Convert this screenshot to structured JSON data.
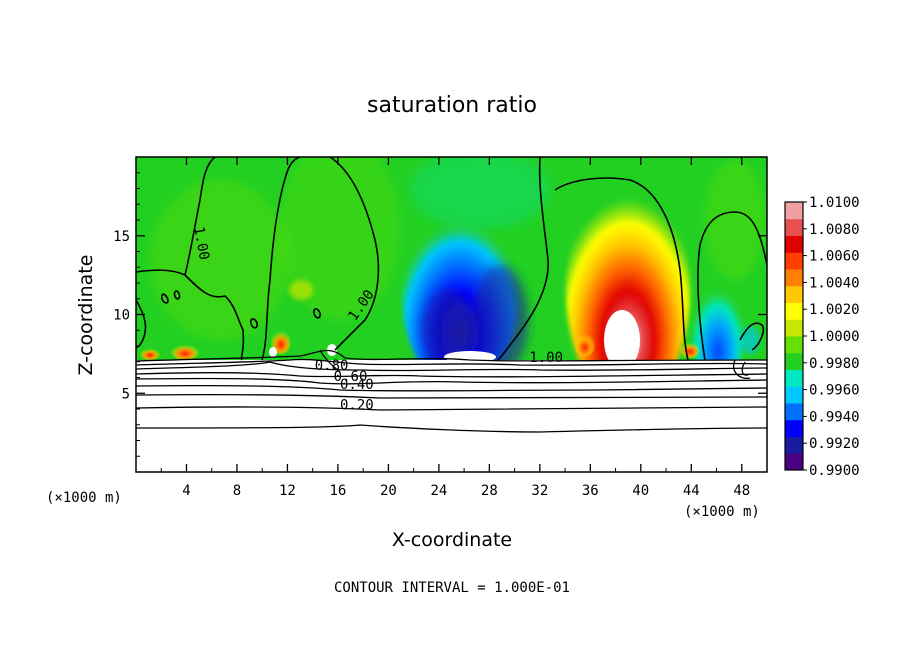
{
  "chart_data": {
    "type": "heatmap",
    "title": "saturation ratio",
    "xlabel": "X-coordinate",
    "ylabel": "Z-coordinate",
    "x_unit": "(×1000 m)",
    "x_unit_right": "(×1000 m)",
    "xlim": [
      0,
      50
    ],
    "ylim": [
      0,
      20
    ],
    "x_ticks": [
      4,
      8,
      12,
      16,
      20,
      24,
      28,
      32,
      36,
      40,
      44,
      48
    ],
    "y_ticks": [
      5,
      10,
      15
    ],
    "footer": "CONTOUR INTERVAL = 1.000E-01",
    "colorbar": {
      "range": [
        0.99,
        1.01
      ],
      "labels": [
        "1.0100",
        "1.0080",
        "1.0060",
        "1.0040",
        "1.0020",
        "1.0000",
        "0.9980",
        "0.9960",
        "0.9940",
        "0.9920",
        "0.9900"
      ],
      "colors": [
        "#4b0082",
        "#1a1aa0",
        "#0000ff",
        "#0070ff",
        "#00c8ff",
        "#00e8c0",
        "#22d022",
        "#66e000",
        "#c8e600",
        "#ffff00",
        "#ffc800",
        "#ff8000",
        "#ff4000",
        "#e00000",
        "#e85050",
        "#f0a0a0"
      ]
    },
    "contour_labels": [
      {
        "text": "1.00",
        "x": 5.0,
        "y": 14.5,
        "rotate": 80
      },
      {
        "text": "1.00",
        "x": 18.0,
        "y": 10.5,
        "rotate": -55
      },
      {
        "text": "1.00",
        "x": 32.5,
        "y": 7.1,
        "rotate": 0
      },
      {
        "text": "0.80",
        "x": 15.5,
        "y": 6.6,
        "rotate": 0
      },
      {
        "text": "0.60",
        "x": 17.0,
        "y": 5.9,
        "rotate": 0
      },
      {
        "text": "0.40",
        "x": 17.5,
        "y": 5.4,
        "rotate": 0
      },
      {
        "text": "0.20",
        "x": 17.5,
        "y": 4.1,
        "rotate": 0
      }
    ]
  }
}
